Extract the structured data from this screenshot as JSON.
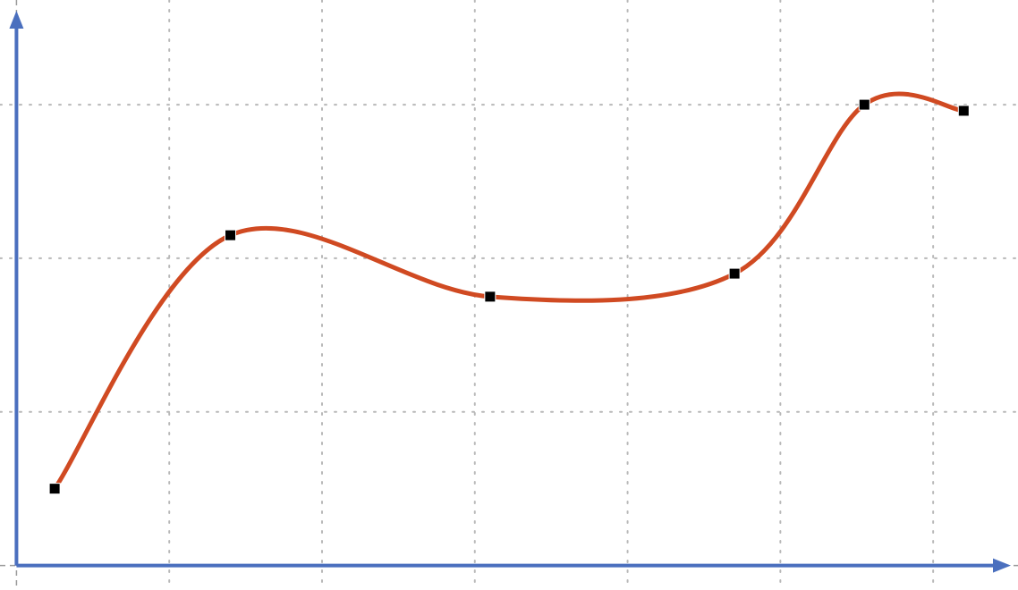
{
  "chart_data": {
    "type": "line",
    "title": "",
    "xlabel": "",
    "ylabel": "",
    "x": [
      0.25,
      1.4,
      3.1,
      4.7,
      5.55,
      6.2
    ],
    "y": [
      0.5,
      2.15,
      1.75,
      1.9,
      3.0,
      2.96
    ],
    "xlim": [
      -0.02,
      6.45
    ],
    "ylim": [
      -0.02,
      3.6
    ],
    "grid": true,
    "grid_style": "dotted",
    "smooth": true,
    "markers": "square",
    "colors": {
      "line": "#d04a22",
      "axis": "#4a6fbe",
      "grid": "#b8b8b8",
      "marker": "#000000",
      "background": "#ffffff"
    }
  }
}
